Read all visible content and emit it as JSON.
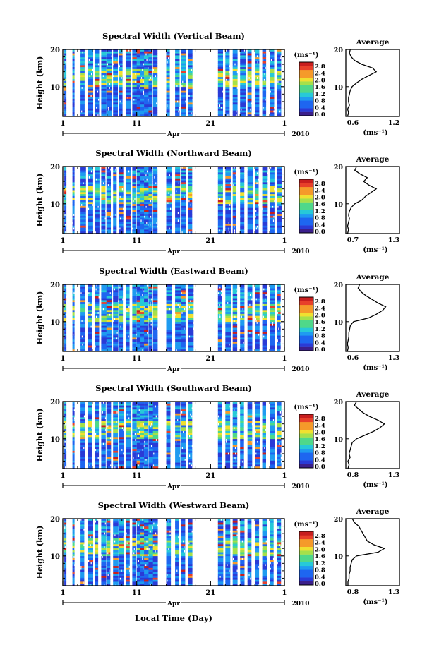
{
  "figure": {
    "year_label": "2010",
    "month_label": "Apr",
    "xlabel": "Local Time (Day)",
    "x_ticks": [
      "1",
      "11",
      "21",
      "1"
    ],
    "ylabel": "Height (km)",
    "y_ticks": [
      "10",
      "20"
    ],
    "colorbar_unit": "(ms⁻¹)",
    "colorbar_ticks": [
      "0.0",
      "0.4",
      "0.8",
      "1.2",
      "1.6",
      "2.0",
      "2.4",
      "2.8"
    ],
    "avg_title": "Average",
    "avg_unit": "(ms⁻¹)"
  },
  "colors": {
    "scale": [
      "#3b1f8c",
      "#2a3bd6",
      "#1e66f0",
      "#1f9bf0",
      "#27c9d8",
      "#4fd88a",
      "#a6e04a",
      "#f0e030",
      "#f59a2a",
      "#e8402a",
      "#c81e1e"
    ],
    "white": "#ffffff"
  },
  "chart_data": [
    {
      "type": "heatmap",
      "title": "Spectral Width (Vertical Beam)",
      "xlim": [
        1,
        31
      ],
      "ylim": [
        2,
        20
      ],
      "color_range": [
        0.0,
        2.8
      ],
      "observation_days": [
        1.2,
        2.3,
        3.4,
        4.4,
        5.3,
        6.2,
        6.9,
        7.8,
        8.6,
        9.5,
        10.4,
        11.0,
        11.5,
        12.0,
        12.6,
        13.2,
        15.0,
        16.2,
        17.0,
        18.0,
        22.0,
        23.0,
        24.0,
        25.0,
        26.0,
        27.0,
        28.0,
        29.0,
        30.0
      ],
      "average_profile": {
        "title": "Average",
        "xlim": [
          0.6,
          1.2
        ],
        "x_ticks": [
          "0.6",
          "1.2"
        ],
        "height_km": [
          2,
          3,
          4,
          5,
          6,
          7,
          8,
          9,
          10,
          11,
          12,
          13,
          14,
          15,
          16,
          17,
          18,
          19,
          20
        ],
        "values": [
          0.62,
          0.63,
          0.62,
          0.64,
          0.63,
          0.63,
          0.64,
          0.65,
          0.67,
          0.72,
          0.78,
          0.86,
          0.94,
          0.9,
          0.78,
          0.7,
          0.66,
          0.64,
          0.65
        ]
      }
    },
    {
      "type": "heatmap",
      "title": "Spectral Width (Northward Beam)",
      "xlim": [
        1,
        31
      ],
      "ylim": [
        2,
        20
      ],
      "color_range": [
        0.0,
        2.8
      ],
      "observation_days": [
        1.2,
        2.3,
        3.4,
        4.4,
        5.3,
        6.2,
        6.9,
        7.8,
        8.6,
        9.5,
        10.4,
        11.0,
        11.5,
        12.0,
        12.6,
        13.2,
        15.0,
        16.2,
        17.0,
        18.0,
        22.0,
        23.0,
        24.0,
        25.0,
        26.0,
        27.0,
        28.0,
        29.0,
        30.0
      ],
      "average_profile": {
        "title": "Average",
        "xlim": [
          0.7,
          1.3
        ],
        "x_ticks": [
          "0.7",
          "1.3"
        ],
        "height_km": [
          2,
          3,
          4,
          5,
          6,
          7,
          8,
          9,
          10,
          11,
          12,
          13,
          14,
          15,
          16,
          17,
          18,
          19,
          20
        ],
        "values": [
          0.72,
          0.73,
          0.72,
          0.73,
          0.74,
          0.73,
          0.74,
          0.76,
          0.8,
          0.88,
          0.92,
          0.98,
          1.04,
          0.96,
          0.9,
          0.94,
          0.86,
          0.8,
          0.82
        ]
      }
    },
    {
      "type": "heatmap",
      "title": "Spectral Width (Eastward Beam)",
      "xlim": [
        1,
        31
      ],
      "ylim": [
        2,
        20
      ],
      "color_range": [
        0.0,
        2.8
      ],
      "observation_days": [
        1.2,
        2.3,
        3.4,
        4.4,
        5.3,
        6.2,
        6.9,
        7.8,
        8.6,
        9.5,
        10.4,
        11.0,
        11.5,
        12.0,
        12.6,
        13.2,
        15.0,
        16.2,
        17.0,
        18.0,
        22.0,
        23.0,
        24.0,
        25.0,
        26.0,
        27.0,
        28.0,
        29.0,
        30.0
      ],
      "average_profile": {
        "title": "Average",
        "xlim": [
          0.6,
          1.3
        ],
        "x_ticks": [
          "0.6",
          "1.3"
        ],
        "height_km": [
          2,
          3,
          4,
          5,
          6,
          7,
          8,
          9,
          10,
          11,
          12,
          13,
          14,
          15,
          16,
          17,
          18,
          19,
          20
        ],
        "values": [
          0.62,
          0.63,
          0.62,
          0.63,
          0.64,
          0.64,
          0.65,
          0.66,
          0.7,
          0.9,
          1.0,
          1.08,
          1.12,
          1.02,
          0.94,
          0.86,
          0.8,
          0.76,
          0.78
        ]
      }
    },
    {
      "type": "heatmap",
      "title": "Spectral Width (Southward Beam)",
      "xlim": [
        1,
        31
      ],
      "ylim": [
        2,
        20
      ],
      "color_range": [
        0.0,
        2.8
      ],
      "observation_days": [
        1.2,
        2.3,
        3.4,
        4.4,
        5.3,
        6.2,
        6.9,
        7.8,
        8.6,
        9.5,
        10.4,
        11.0,
        11.5,
        12.0,
        12.6,
        13.2,
        15.0,
        16.2,
        17.0,
        18.0,
        22.0,
        23.0,
        24.0,
        25.0,
        26.0,
        27.0,
        28.0,
        29.0,
        30.0
      ],
      "average_profile": {
        "title": "Average",
        "xlim": [
          0.8,
          1.3
        ],
        "x_ticks": [
          "0.8",
          "1.3"
        ],
        "height_km": [
          2,
          3,
          4,
          5,
          6,
          7,
          8,
          9,
          10,
          11,
          12,
          13,
          14,
          15,
          16,
          17,
          18,
          19,
          20
        ],
        "values": [
          0.82,
          0.83,
          0.82,
          0.84,
          0.83,
          0.84,
          0.85,
          0.86,
          0.9,
          0.98,
          1.06,
          1.12,
          1.16,
          1.1,
          1.02,
          0.96,
          0.92,
          0.88,
          0.9
        ]
      }
    },
    {
      "type": "heatmap",
      "title": "Spectral Width (Westward Beam)",
      "xlim": [
        1,
        31
      ],
      "ylim": [
        2,
        20
      ],
      "color_range": [
        0.0,
        2.8
      ],
      "observation_days": [
        1.2,
        2.3,
        3.4,
        4.4,
        5.3,
        6.2,
        6.9,
        7.8,
        8.6,
        9.5,
        10.4,
        11.0,
        11.5,
        12.0,
        12.6,
        13.2,
        15.0,
        16.2,
        17.0,
        18.0,
        22.0,
        23.0,
        24.0,
        25.0,
        26.0,
        27.0,
        28.0,
        29.0,
        30.0
      ],
      "average_profile": {
        "title": "Average",
        "xlim": [
          0.8,
          1.3
        ],
        "x_ticks": [
          "0.8",
          "1.3"
        ],
        "height_km": [
          2,
          3,
          4,
          5,
          6,
          7,
          8,
          9,
          10,
          11,
          12,
          13,
          14,
          15,
          16,
          17,
          18,
          19,
          20
        ],
        "values": [
          0.82,
          0.82,
          0.83,
          0.83,
          0.84,
          0.84,
          0.85,
          0.86,
          0.9,
          1.1,
          1.16,
          1.06,
          1.0,
          0.98,
          0.96,
          0.94,
          0.92,
          0.88,
          0.86
        ]
      }
    }
  ]
}
